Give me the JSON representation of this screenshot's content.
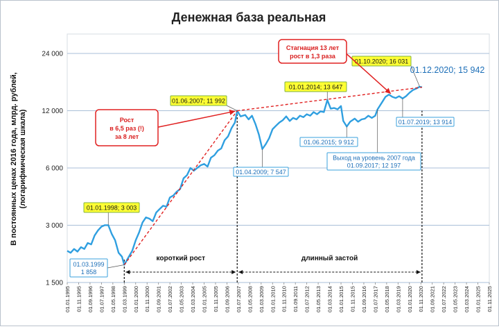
{
  "chart_data": {
    "type": "line",
    "title": "Денежная база реальная",
    "ylabel": [
      "В постоянных ценах 2016 года, млрд. рублей,",
      "(логарифмическая шкала)"
    ],
    "yscale": "log",
    "ylim": [
      1500,
      30000
    ],
    "yticks": [
      1500,
      3000,
      6000,
      12000,
      24000
    ],
    "ytick_labels": [
      "1 500",
      "3 000",
      "6 000",
      "12 000",
      "24 000"
    ],
    "grid": true,
    "x_labels": [
      "01.01.1995",
      "01.11.1995",
      "01.09.1996",
      "01.07.1997",
      "01.05.1998",
      "01.03.1999",
      "01.01.2000",
      "01.11.2000",
      "01.09.2001",
      "01.07.2002",
      "01.05.2003",
      "01.03.2004",
      "01.01.2005",
      "01.11.2005",
      "01.09.2006",
      "01.07.2007",
      "01.05.2008",
      "01.03.2009",
      "01.01.2010",
      "01.11.2010",
      "01.09.2011",
      "01.07.2012",
      "01.05.2013",
      "01.03.2014",
      "01.01.2015",
      "01.11.2015",
      "01.09.2016",
      "01.07.2017",
      "01.05.2018",
      "01.03.2019",
      "01.01.2020",
      "01.11.2020",
      "01.09.2021",
      "01.07.2022",
      "01.05.2023",
      "01.03.2024",
      "01.01.2025",
      "01.11.2025"
    ],
    "series": [
      {
        "color": "#2f9fe0",
        "points": [
          [
            "01.01.1995",
            2200
          ],
          [
            "01.04.1995",
            2150
          ],
          [
            "01.07.1995",
            2250
          ],
          [
            "01.10.1995",
            2180
          ],
          [
            "01.01.1996",
            2300
          ],
          [
            "01.04.1996",
            2250
          ],
          [
            "01.07.1996",
            2420
          ],
          [
            "01.10.1996",
            2380
          ],
          [
            "01.01.1997",
            2650
          ],
          [
            "01.04.1997",
            2820
          ],
          [
            "01.07.1997",
            2950
          ],
          [
            "01.10.1997",
            3003
          ],
          [
            "01.01.1998",
            3003
          ],
          [
            "01.04.1998",
            2700
          ],
          [
            "01.07.1998",
            2500
          ],
          [
            "01.10.1998",
            2150
          ],
          [
            "01.01.1999",
            2050
          ],
          [
            "01.03.1999",
            1858
          ],
          [
            "01.07.1999",
            2050
          ],
          [
            "01.10.1999",
            2200
          ],
          [
            "01.01.2000",
            2500
          ],
          [
            "01.04.2000",
            2750
          ],
          [
            "01.07.2000",
            3100
          ],
          [
            "01.10.2000",
            3300
          ],
          [
            "01.01.2001",
            3250
          ],
          [
            "01.04.2001",
            3150
          ],
          [
            "01.07.2001",
            3500
          ],
          [
            "01.10.2001",
            3650
          ],
          [
            "01.01.2002",
            3800
          ],
          [
            "01.04.2002",
            3750
          ],
          [
            "01.07.2002",
            4200
          ],
          [
            "01.10.2002",
            4300
          ],
          [
            "01.01.2003",
            4500
          ],
          [
            "01.04.2003",
            4650
          ],
          [
            "01.07.2003",
            5300
          ],
          [
            "01.10.2003",
            5500
          ],
          [
            "01.01.2004",
            6000
          ],
          [
            "01.04.2004",
            5800
          ],
          [
            "01.07.2004",
            6000
          ],
          [
            "01.10.2004",
            6200
          ],
          [
            "01.01.2005",
            6300
          ],
          [
            "01.04.2005",
            6100
          ],
          [
            "01.07.2005",
            6800
          ],
          [
            "01.10.2005",
            7000
          ],
          [
            "01.01.2006",
            7400
          ],
          [
            "01.04.2006",
            7600
          ],
          [
            "01.07.2006",
            8400
          ],
          [
            "01.10.2006",
            8800
          ],
          [
            "01.01.2007",
            9700
          ],
          [
            "01.04.2007",
            10400
          ],
          [
            "01.06.2007",
            11992
          ],
          [
            "01.09.2007",
            11200
          ],
          [
            "01.01.2008",
            11400
          ],
          [
            "01.04.2008",
            10800
          ],
          [
            "01.07.2008",
            11300
          ],
          [
            "01.10.2008",
            10200
          ],
          [
            "01.01.2009",
            9000
          ],
          [
            "01.04.2009",
            7547
          ],
          [
            "01.07.2009",
            8000
          ],
          [
            "01.10.2009",
            8600
          ],
          [
            "01.01.2010",
            9600
          ],
          [
            "01.04.2010",
            10000
          ],
          [
            "01.07.2010",
            10400
          ],
          [
            "01.10.2010",
            10700
          ],
          [
            "01.01.2011",
            11200
          ],
          [
            "01.04.2011",
            10600
          ],
          [
            "01.07.2011",
            11000
          ],
          [
            "01.10.2011",
            10800
          ],
          [
            "01.01.2012",
            11300
          ],
          [
            "01.04.2012",
            11100
          ],
          [
            "01.07.2012",
            11500
          ],
          [
            "01.10.2012",
            11300
          ],
          [
            "01.01.2013",
            11800
          ],
          [
            "01.04.2013",
            11500
          ],
          [
            "01.07.2013",
            11900
          ],
          [
            "01.10.2013",
            11800
          ],
          [
            "01.01.2014",
            13647
          ],
          [
            "01.04.2014",
            12300
          ],
          [
            "01.07.2014",
            12400
          ],
          [
            "01.10.2014",
            12200
          ],
          [
            "01.01.2015",
            12700
          ],
          [
            "01.03.2015",
            10600
          ],
          [
            "01.06.2015",
            9912
          ],
          [
            "01.09.2015",
            10500
          ],
          [
            "01.01.2016",
            10900
          ],
          [
            "01.04.2016",
            10500
          ],
          [
            "01.07.2016",
            10800
          ],
          [
            "01.10.2016",
            10900
          ],
          [
            "01.01.2017",
            11300
          ],
          [
            "01.04.2017",
            11000
          ],
          [
            "01.07.2017",
            11300
          ],
          [
            "01.09.2017",
            12197
          ],
          [
            "01.01.2018",
            13300
          ],
          [
            "01.04.2018",
            14200
          ],
          [
            "01.07.2018",
            14600
          ],
          [
            "01.10.2018",
            14200
          ],
          [
            "01.01.2019",
            14000
          ],
          [
            "01.04.2019",
            14300
          ],
          [
            "01.07.2019",
            13914
          ],
          [
            "01.10.2019",
            14300
          ],
          [
            "01.01.2020",
            14900
          ],
          [
            "01.04.2020",
            15400
          ],
          [
            "01.07.2020",
            15700
          ],
          [
            "01.10.2020",
            16031
          ],
          [
            "01.12.2020",
            15942
          ]
        ]
      }
    ],
    "trend_lines": [
      {
        "color": "#e02020",
        "style": "dashed",
        "from": [
          "01.03.1999",
          1858
        ],
        "to": [
          "01.06.2007",
          11992
        ]
      },
      {
        "color": "#e02020",
        "style": "dashed",
        "from": [
          "01.06.2007",
          11992
        ],
        "to": [
          "01.12.2020",
          15942
        ]
      }
    ],
    "vlines": [
      "01.03.1999",
      "01.06.2007",
      "01.12.2020"
    ],
    "phases": [
      {
        "label": "короткий рост",
        "from": "01.03.1999",
        "to": "01.06.2007"
      },
      {
        "label": "длинный застой",
        "from": "01.06.2007",
        "to": "01.12.2020"
      }
    ],
    "annotations": [
      {
        "text": [
          "01.01.1998;  3 003"
        ],
        "style": "yellow",
        "at": [
          "01.01.1998",
          3003
        ]
      },
      {
        "text": [
          "01.03.1999",
          "1 858"
        ],
        "style": "blue",
        "at": [
          "01.03.1999",
          1858
        ]
      },
      {
        "text": [
          "01.06.2007;  11 992"
        ],
        "style": "yellow",
        "at": [
          "01.06.2007",
          11992
        ]
      },
      {
        "text": [
          "01.04.2009;  7 547"
        ],
        "style": "blue",
        "at": [
          "01.04.2009",
          7547
        ]
      },
      {
        "text": [
          "01.01.2014;  13 647"
        ],
        "style": "yellow",
        "at": [
          "01.01.2014",
          13647
        ]
      },
      {
        "text": [
          "01.06.2015;  9 912"
        ],
        "style": "blue",
        "at": [
          "01.06.2015",
          9912
        ]
      },
      {
        "text": [
          "Выход на уровень 2007 года",
          "01.09.2017;  12 197"
        ],
        "style": "blue",
        "at": [
          "01.09.2017",
          12197
        ]
      },
      {
        "text": [
          "01.07.2019;  13 914"
        ],
        "style": "blue",
        "at": [
          "01.07.2019",
          13914
        ]
      },
      {
        "text": [
          "01.10.2020;  16 031"
        ],
        "style": "yellow",
        "at": [
          "01.10.2020",
          16031
        ]
      },
      {
        "text": [
          "01.12.2020;  15 942"
        ],
        "style": "big",
        "at": [
          "01.12.2020",
          15942
        ]
      },
      {
        "text": [
          "Рост",
          "в 6,5 раз (!)",
          "за 8 лет"
        ],
        "style": "red",
        "at": [
          "01.06.2007",
          11992
        ]
      },
      {
        "text": [
          "Стагнация 13 лет",
          "рост в 1,3 раза"
        ],
        "style": "red",
        "at": [
          "01.10.2018",
          14500
        ]
      }
    ]
  }
}
